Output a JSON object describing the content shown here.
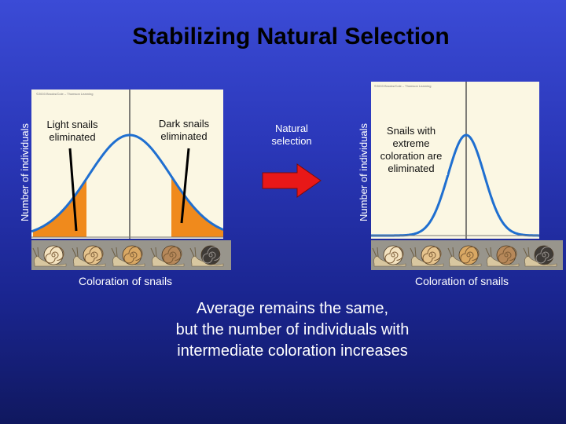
{
  "title": "Stabilizing Natural Selection",
  "left_panel": {
    "credit": "©2003 Brooks/Cole – Thomson Learning",
    "y_label": "Number of individuals",
    "x_label": "Coloration of snails",
    "annotation_left": "Light snails eliminated",
    "annotation_right": "Dark snails eliminated",
    "curve_color": "#1f6fd0",
    "tail_color": "#f08a1c"
  },
  "middle": {
    "label": "Natural selection",
    "arrow_color": "#e81818"
  },
  "right_panel": {
    "credit": "©2003 Brooks/Cole – Thomson Learning",
    "y_label": "Number of individuals",
    "x_label": "Coloration of snails",
    "annotation": "Snails with extreme coloration are eliminated",
    "curve_color": "#1f6fd0"
  },
  "snails": {
    "count": 5,
    "shell_colors": [
      "#f3e2c0",
      "#e6c48e",
      "#d9a864",
      "#b6885a",
      "#3e3a36"
    ]
  },
  "caption": {
    "line1": "Average remains the same,",
    "line2": "but the number of individuals with",
    "line3": "intermediate coloration increases"
  }
}
